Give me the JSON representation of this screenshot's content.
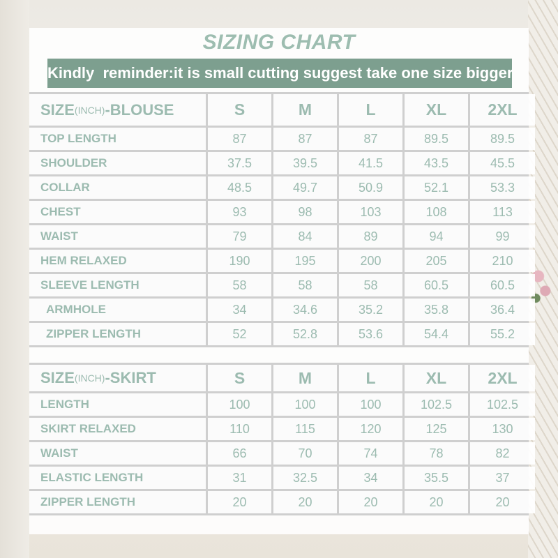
{
  "title": "SIZING CHART",
  "reminder": "Kindly  reminder:it is small cutting suggest take one size bigger",
  "colors": {
    "text": "#9cbbb0",
    "banner": "#7d9f8f",
    "grid": "#cfcfcf"
  },
  "blouse": {
    "header": {
      "prefix": "SIZE",
      "unit": "(INCH)",
      "suffix": "-BLOUSE"
    },
    "sizes": [
      "S",
      "M",
      "L",
      "XL",
      "2XL"
    ],
    "rows": [
      {
        "label": "TOP LENGTH",
        "values": [
          "87",
          "87",
          "87",
          "89.5",
          "89.5"
        ]
      },
      {
        "label": "SHOULDER",
        "values": [
          "37.5",
          "39.5",
          "41.5",
          "43.5",
          "45.5"
        ]
      },
      {
        "label": "COLLAR",
        "values": [
          "48.5",
          "49.7",
          "50.9",
          "52.1",
          "53.3"
        ]
      },
      {
        "label": "CHEST",
        "values": [
          "93",
          "98",
          "103",
          "108",
          "113"
        ]
      },
      {
        "label": "WAIST",
        "values": [
          "79",
          "84",
          "89",
          "94",
          "99"
        ]
      },
      {
        "label": "HEM RELAXED",
        "values": [
          "190",
          "195",
          "200",
          "205",
          "210"
        ]
      },
      {
        "label": "SLEEVE LENGTH",
        "values": [
          "58",
          "58",
          "58",
          "60.5",
          "60.5"
        ]
      },
      {
        "label": "ARMHOLE",
        "values": [
          "34",
          "34.6",
          "35.2",
          "35.8",
          "36.4"
        ]
      },
      {
        "label": "ZIPPER LENGTH",
        "values": [
          "52",
          "52.8",
          "53.6",
          "54.4",
          "55.2"
        ]
      }
    ]
  },
  "skirt": {
    "header": {
      "prefix": "SIZE",
      "unit": "(INCH)",
      "suffix": "-SKIRT"
    },
    "sizes": [
      "S",
      "M",
      "L",
      "XL",
      "2XL"
    ],
    "rows": [
      {
        "label": "LENGTH",
        "values": [
          "100",
          "100",
          "100",
          "102.5",
          "102.5"
        ]
      },
      {
        "label": "SKIRT RELAXED",
        "values": [
          "110",
          "115",
          "120",
          "125",
          "130"
        ]
      },
      {
        "label": "WAIST",
        "values": [
          "66",
          "70",
          "74",
          "78",
          "82"
        ]
      },
      {
        "label": "ELASTIC LENGTH",
        "values": [
          "31",
          "32.5",
          "34",
          "35.5",
          "37"
        ]
      },
      {
        "label": "ZIPPER LENGTH",
        "values": [
          "20",
          "20",
          "20",
          "20",
          "20"
        ]
      }
    ]
  }
}
